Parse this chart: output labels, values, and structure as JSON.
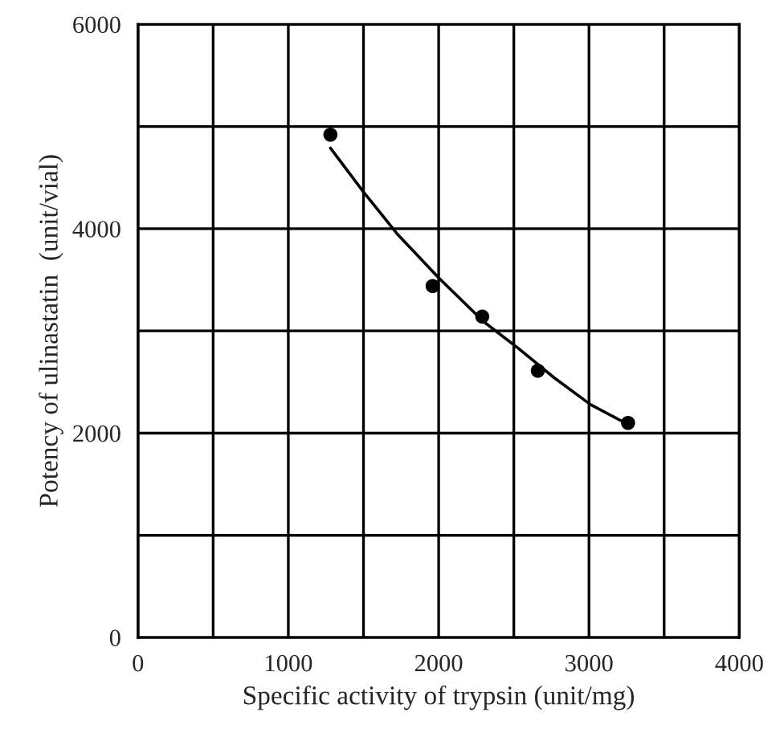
{
  "chart_data": {
    "type": "scatter",
    "xlabel": "Specific activity of trypsin (unit/mg)",
    "ylabel": "Potency of ulinastatin  (unit/vial)",
    "xlim": [
      0,
      4000
    ],
    "ylim": [
      0,
      6000
    ],
    "xticks": [
      0,
      {
        "value": 500,
        "label": null
      },
      1000,
      {
        "value": 1500,
        "label": null
      },
      2000,
      {
        "value": 2500,
        "label": null
      },
      3000,
      {
        "value": 3500,
        "label": null
      },
      4000
    ],
    "yticks": [
      0,
      {
        "value": 1000,
        "label": null
      },
      2000,
      {
        "value": 3000,
        "label": null
      },
      4000,
      {
        "value": 5000,
        "label": null
      },
      6000
    ],
    "grid": true,
    "marker": "circle",
    "series": [
      {
        "color": "#000000",
        "x": [
          1280,
          1960,
          2290,
          2660,
          3260
        ],
        "values": [
          4920,
          3440,
          3140,
          2610,
          2100
        ]
      },
      {
        "type": "line",
        "color": "#000000",
        "marker": "none",
        "x": [
          1280,
          1500,
          1730,
          2000,
          2300,
          2530,
          2770,
          3010,
          3240
        ],
        "values": [
          4790,
          4360,
          3940,
          3520,
          3090,
          2830,
          2540,
          2280,
          2100
        ]
      }
    ]
  }
}
